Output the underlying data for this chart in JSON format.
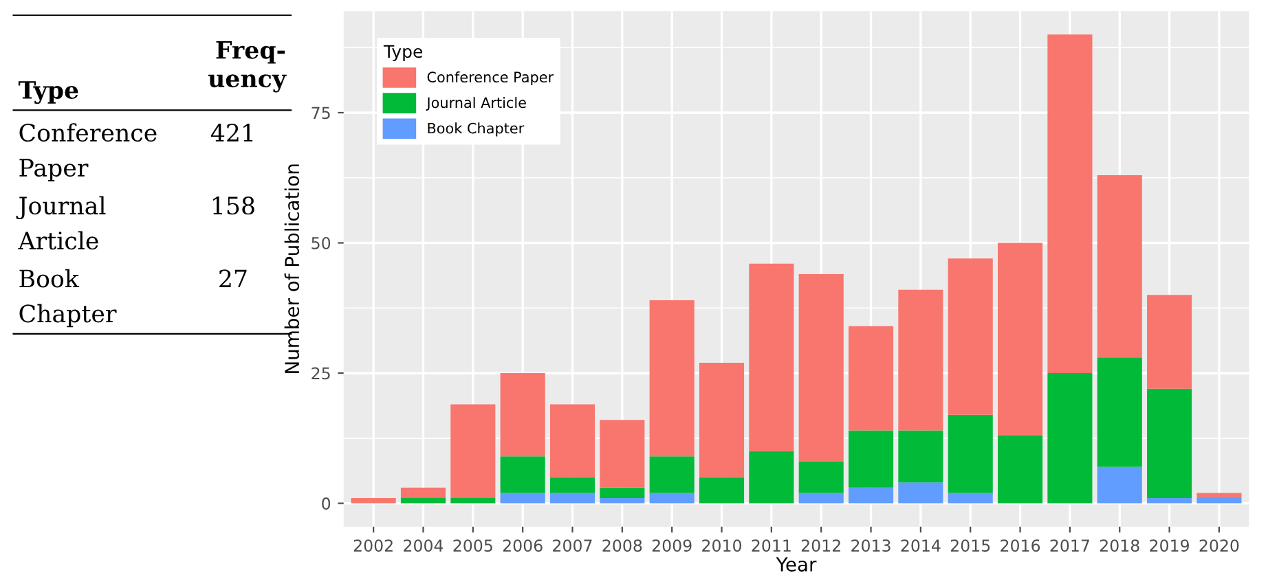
{
  "chart_data": [
    {
      "type": "other",
      "xlabel": "Type",
      "ylabel": "Freq-uency",
      "categories": [
        "Conference Paper",
        "Journal Article",
        "Book Chapter"
      ],
      "values": [
        421,
        158,
        27
      ],
      "data_labels": true
    },
    {
      "type": "bar",
      "stacked": true,
      "xlabel": "Year",
      "ylabel": "Number of Publication",
      "legend_title": "Type",
      "legend": "top left",
      "grid": true,
      "categories": [
        "2002",
        "2004",
        "2005",
        "2006",
        "2007",
        "2008",
        "2009",
        "2010",
        "2011",
        "2012",
        "2013",
        "2014",
        "2015",
        "2016",
        "2017",
        "2018",
        "2019",
        "2020"
      ],
      "ylim": [
        -4.5,
        94.5
      ],
      "yticks": [
        0,
        25,
        50,
        75
      ],
      "series": [
        {
          "name": "Book Chapter",
          "color": "#619cff",
          "values": [
            0,
            0,
            0,
            2,
            2,
            1,
            2,
            0,
            0,
            2,
            3,
            4,
            2,
            0,
            0,
            7,
            1,
            1
          ]
        },
        {
          "name": "Journal Article",
          "color": "#00ba38",
          "values": [
            0,
            1,
            1,
            7,
            3,
            2,
            7,
            5,
            10,
            6,
            11,
            10,
            15,
            13,
            25,
            21,
            21,
            0
          ]
        },
        {
          "name": "Conference Paper",
          "color": "#f8766d",
          "values": [
            1,
            2,
            18,
            16,
            14,
            13,
            30,
            22,
            36,
            36,
            20,
            27,
            30,
            37,
            65,
            35,
            18,
            1
          ]
        }
      ]
    }
  ]
}
